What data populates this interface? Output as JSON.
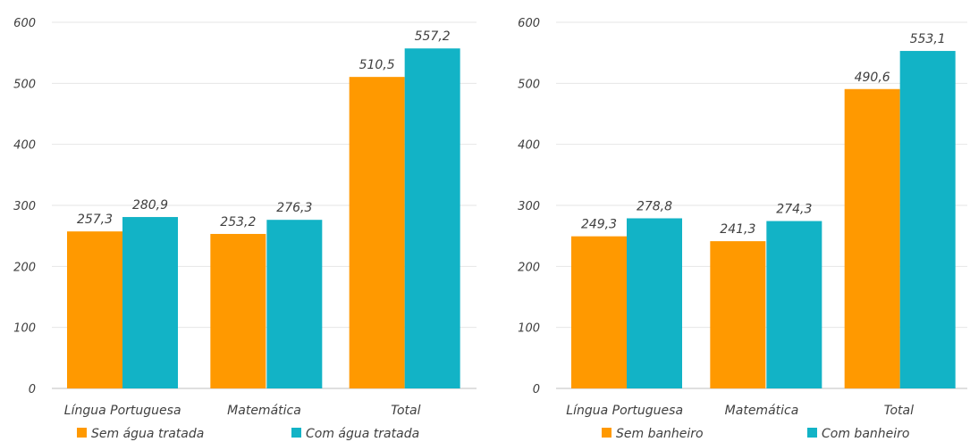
{
  "colors": {
    "series_a": "#FF9900",
    "series_b": "#12B3C6"
  },
  "chart_data": [
    {
      "type": "bar",
      "categories": [
        "Língua Portuguesa",
        "Matemática",
        "Total"
      ],
      "series": [
        {
          "name": "Sem água tratada",
          "values": [
            257.3,
            253.2,
            510.5
          ],
          "labels": [
            "257,3",
            "253,2",
            "510,5"
          ]
        },
        {
          "name": "Com água tratada",
          "values": [
            280.9,
            276.3,
            557.2
          ],
          "labels": [
            "280,9",
            "276,3",
            "557,2"
          ]
        }
      ],
      "ylim": [
        0,
        600
      ],
      "yticks": [
        0,
        100,
        200,
        300,
        400,
        500,
        600
      ],
      "grid": true,
      "legend": "bottom"
    },
    {
      "type": "bar",
      "categories": [
        "Língua Portuguesa",
        "Matemática",
        "Total"
      ],
      "series": [
        {
          "name": "Sem banheiro",
          "values": [
            249.3,
            241.3,
            490.6
          ],
          "labels": [
            "249,3",
            "241,3",
            "490,6"
          ]
        },
        {
          "name": "Com banheiro",
          "values": [
            278.8,
            274.3,
            553.1
          ],
          "labels": [
            "278,8",
            "274,3",
            "553,1"
          ]
        }
      ],
      "ylim": [
        0,
        600
      ],
      "yticks": [
        0,
        100,
        200,
        300,
        400,
        500,
        600
      ],
      "grid": true,
      "legend": "bottom"
    }
  ]
}
